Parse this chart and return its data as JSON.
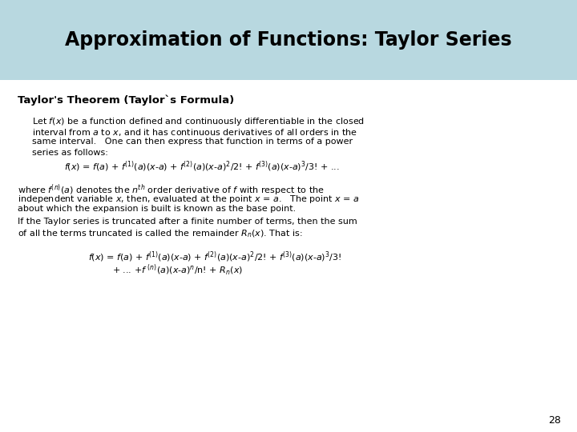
{
  "bg_color": "#ffffff",
  "header_bg": "#b8d8e0",
  "header_text": "Approximation of Functions: Taylor Series",
  "header_fontsize": 17,
  "header_color": "#000000",
  "subtitle": "Taylor's Theorem (Taylor`s Formula)",
  "subtitle_fontsize": 9.5,
  "page_number": "28",
  "body_fontsize": 8.0
}
